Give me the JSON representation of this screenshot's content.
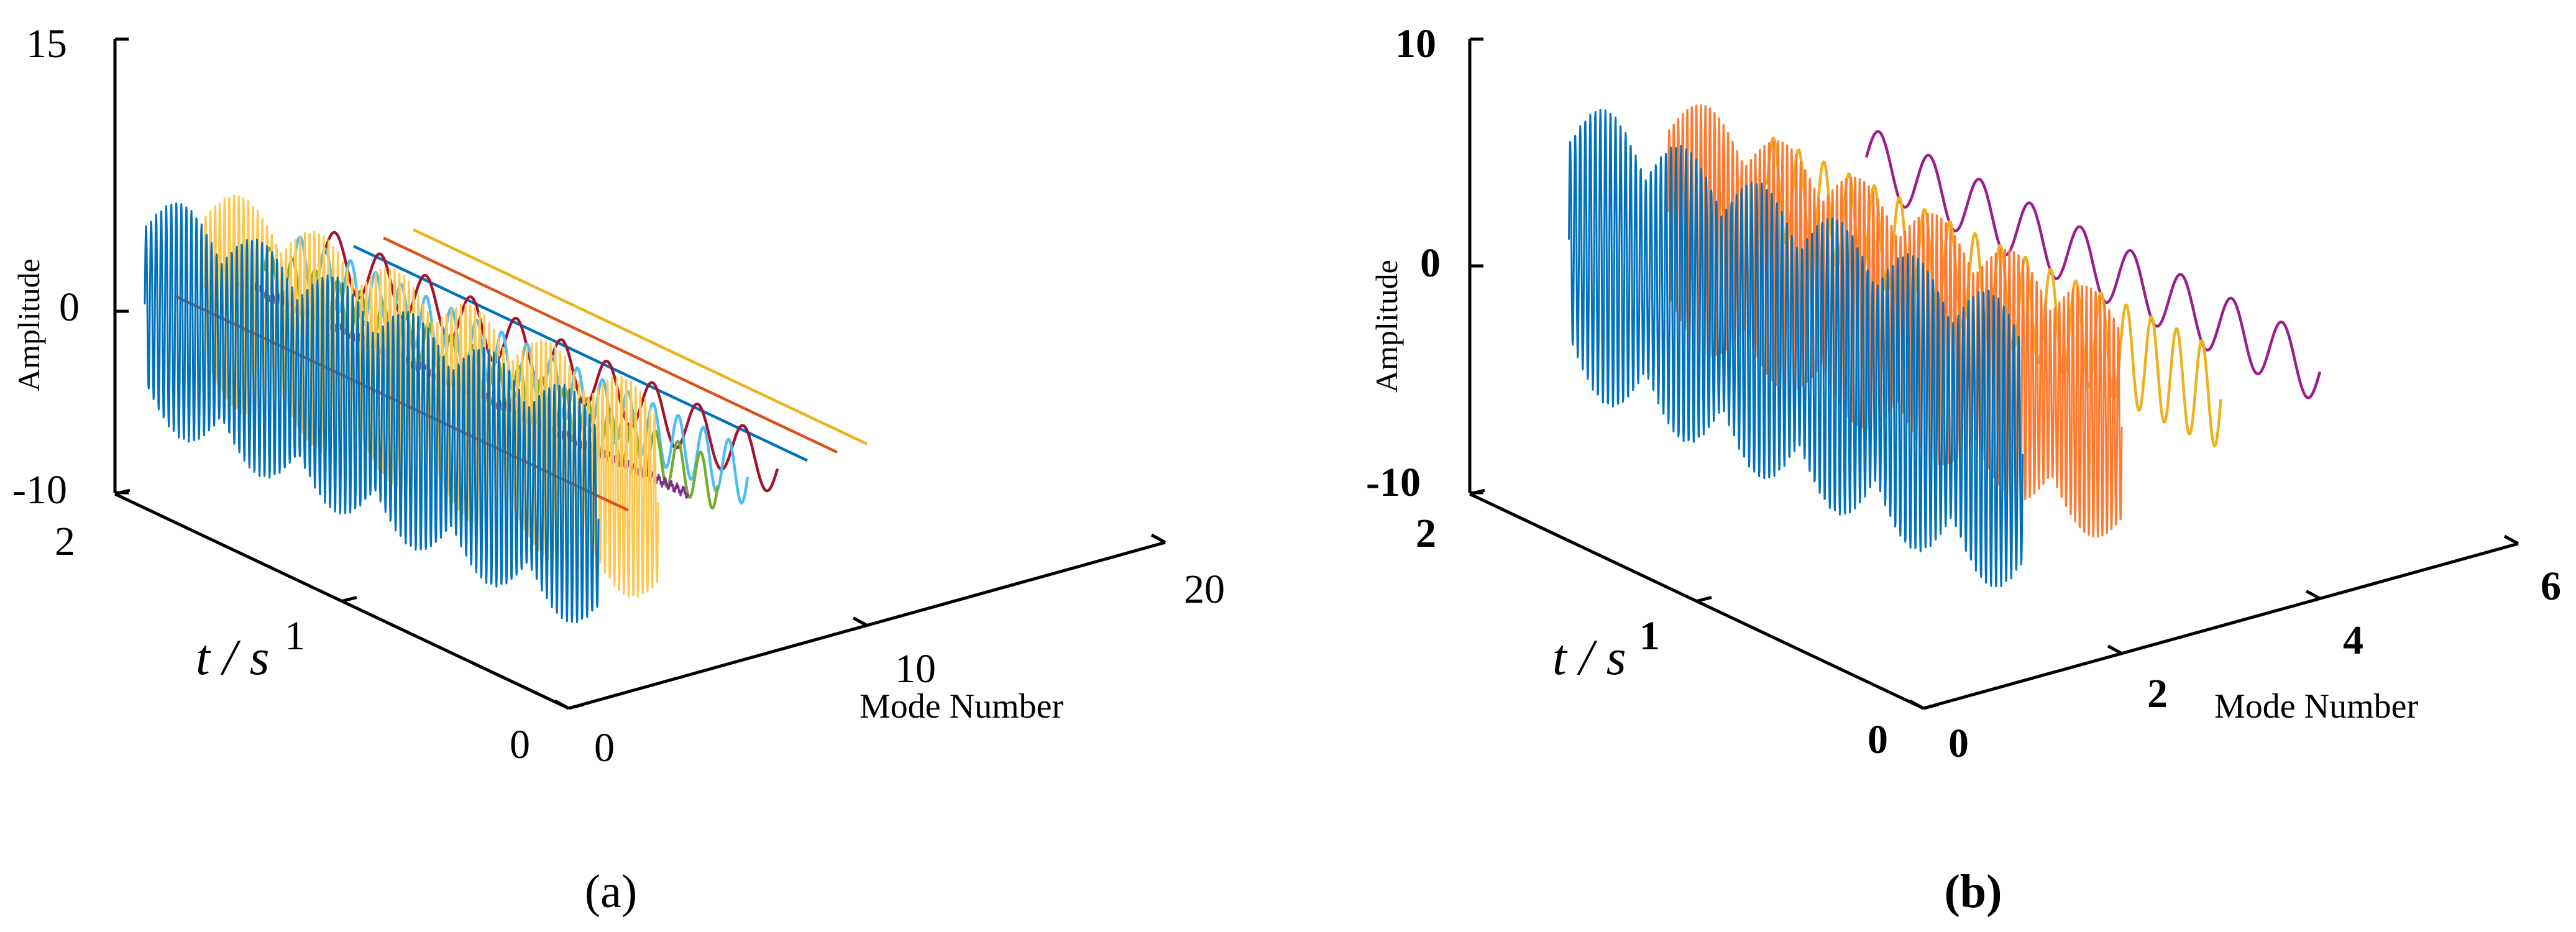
{
  "chart_data": [
    {
      "panel": "(a)",
      "type": "line",
      "projection": "3d",
      "z_axis": {
        "label": "Amplitude",
        "ticks": [
          15,
          0,
          -10
        ],
        "range": [
          -10,
          15
        ]
      },
      "t_axis": {
        "label": "t / s",
        "ticks": [
          2,
          1,
          0
        ],
        "range": [
          0,
          2
        ]
      },
      "mode_axis": {
        "label": "Mode Number",
        "ticks": [
          0,
          10,
          20
        ],
        "range": [
          0,
          20
        ]
      },
      "tick_labels": {
        "z": [
          "15",
          "0",
          "-10"
        ],
        "t": [
          "2",
          "1",
          "0"
        ],
        "mode": [
          "0",
          "10",
          "20"
        ]
      },
      "caption_letter": "a",
      "series": [
        {
          "mode": 1,
          "color": "#0072BD",
          "amplitude": 6.5,
          "cycles_per_s": 45,
          "length_s": 2.0
        },
        {
          "mode": 2,
          "color": "#D95319",
          "amplitude": 0.0,
          "cycles_per_s": 0,
          "length_s": 2.0
        },
        {
          "mode": 3,
          "color": "#FFC74F",
          "amplitude": 6.0,
          "cycles_per_s": 48,
          "length_s": 2.0
        },
        {
          "mode": 4,
          "color": "#7E2F8E",
          "amplitude": 0.3,
          "cycles_per_s": 160,
          "length_s": 2.0
        },
        {
          "mode": 5,
          "color": "#77AC30",
          "amplitude": 1.4,
          "cycles_per_s": 10,
          "length_s": 2.0
        },
        {
          "mode": 6,
          "color": "#4DBEEE",
          "amplitude": 1.6,
          "cycles_per_s": 9,
          "length_s": 2.0
        },
        {
          "mode": 7,
          "color": "#A2142F",
          "amplitude": 1.5,
          "cycles_per_s": 5,
          "length_s": 2.0
        },
        {
          "mode": 8,
          "color": "#0072BD",
          "amplitude": 0.0,
          "cycles_per_s": 0,
          "length_s": 2.0
        },
        {
          "mode": 9,
          "color": "#D95319",
          "amplitude": 0.0,
          "cycles_per_s": 0,
          "length_s": 2.0
        },
        {
          "mode": 10,
          "color": "#EDB120",
          "amplitude": 0.0,
          "cycles_per_s": 0,
          "length_s": 2.0
        }
      ]
    },
    {
      "panel": "(b)",
      "type": "line",
      "projection": "3d",
      "z_axis": {
        "label": "Amplitude",
        "ticks": [
          10,
          0,
          -10
        ],
        "range": [
          -10,
          10
        ]
      },
      "t_axis": {
        "label": "t / s",
        "ticks": [
          2,
          1,
          0
        ],
        "range": [
          0,
          2
        ]
      },
      "mode_axis": {
        "label": "Mode Number",
        "ticks": [
          0,
          2,
          4,
          6
        ],
        "range": [
          0,
          6
        ]
      },
      "tick_labels": {
        "z": [
          "10",
          "0",
          "-10"
        ],
        "t": [
          "2",
          "1",
          "0"
        ],
        "mode": [
          "0",
          "2",
          "4",
          "6"
        ]
      },
      "caption_letter": "b",
      "series": [
        {
          "mode": 1,
          "color": "#0072BD",
          "amplitude": 6.5,
          "cycles_per_s": 45,
          "length_s": 2.0
        },
        {
          "mode": 2,
          "color": "#FF7A30",
          "amplitude": 5.6,
          "cycles_per_s": 50,
          "length_s": 2.0
        },
        {
          "mode": 3,
          "color": "#EDB120",
          "amplitude": 2.2,
          "cycles_per_s": 9,
          "length_s": 2.0
        },
        {
          "mode": 4,
          "color": "#9B1E8E",
          "amplitude": 1.4,
          "cycles_per_s": 4.5,
          "length_s": 2.0
        }
      ]
    }
  ]
}
